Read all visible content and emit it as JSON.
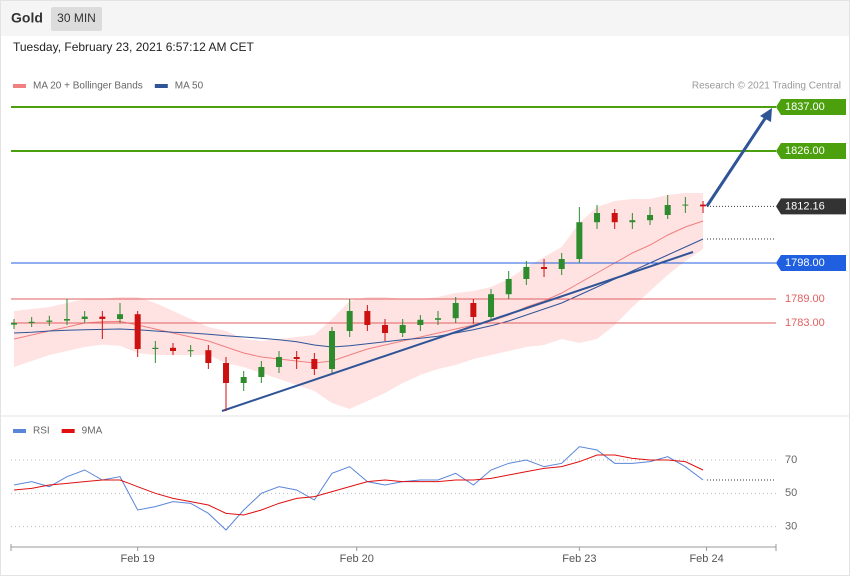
{
  "header": {
    "title": "Gold",
    "interval": "30 MIN",
    "timestamp": "Tuesday, February 23, 2021 6:57:12 AM CET"
  },
  "chart_data": [
    {
      "type": "candlestick",
      "credit": "Research © 2021 Trading Central",
      "xlim": [
        -0.17,
        43.13
      ],
      "ylim": [
        1760,
        1840
      ],
      "up_color": "#2e8b2e",
      "down_color": "#cc1111",
      "open": [
        1782.6,
        1783,
        1783.3,
        1783.6,
        1784,
        1784.6,
        1784,
        1785.2,
        1776.5,
        1776.8,
        1776,
        1776.2,
        1773,
        1768,
        1769.5,
        1772,
        1774.5,
        1774,
        1771.5,
        1781,
        1786,
        1782.5,
        1780.5,
        1782.5,
        1783.8,
        1784.2,
        1788,
        1784.5,
        1790.2,
        1794,
        1797,
        1796.5,
        1799,
        1808.2,
        1810.5,
        1808.2,
        1808.7,
        1810,
        1812.5,
        1812.6
      ],
      "high": [
        1784,
        1784.5,
        1784.8,
        1789,
        1786,
        1786,
        1788,
        1786,
        1778.5,
        1778,
        1777.5,
        1777.5,
        1774.5,
        1771,
        1773.5,
        1776,
        1776,
        1775.5,
        1782,
        1789,
        1787.5,
        1784,
        1784,
        1785,
        1786,
        1789.5,
        1789,
        1791.5,
        1796,
        1798.5,
        1799,
        1800.5,
        1812,
        1812.5,
        1811.5,
        1810.5,
        1812,
        1815,
        1814.5,
        1813.5
      ],
      "low": [
        1781.5,
        1782,
        1782.3,
        1782.5,
        1783,
        1779,
        1783,
        1774.5,
        1773,
        1775,
        1774.5,
        1771.5,
        1761,
        1766,
        1768,
        1770.5,
        1771.5,
        1770,
        1770.5,
        1779.5,
        1781,
        1778.5,
        1779.5,
        1781,
        1782.5,
        1783,
        1782.8,
        1783.5,
        1789,
        1792.5,
        1794.5,
        1795,
        1798,
        1806.5,
        1806.5,
        1806.5,
        1807.5,
        1809,
        1810.5,
        1810.5
      ],
      "close": [
        1783,
        1783.3,
        1783.6,
        1784,
        1784.6,
        1784,
        1785.2,
        1776.5,
        1776.8,
        1776,
        1776.2,
        1773,
        1768,
        1769.5,
        1772,
        1774.5,
        1774,
        1771.5,
        1781,
        1786,
        1782.5,
        1780.5,
        1782.5,
        1783.8,
        1784.2,
        1788,
        1784.5,
        1790.2,
        1794,
        1797,
        1796.5,
        1799,
        1808.2,
        1810.5,
        1808.2,
        1808.7,
        1810,
        1812.5,
        1812.6,
        1812.16
      ],
      "series": [
        {
          "name": "MA 20 + Bollinger Bands",
          "color": "#f08080",
          "band_color": "#ffd6d6",
          "values": [
            1779,
            1780,
            1781,
            1782,
            1783,
            1783.3,
            1783.4,
            1782.5,
            1781.5,
            1780.5,
            1779.5,
            1778.5,
            1777,
            1775.5,
            1774.5,
            1774,
            1773.5,
            1773,
            1773.5,
            1775,
            1776.5,
            1777.5,
            1778.5,
            1779.5,
            1780.5,
            1781.5,
            1782.5,
            1783.5,
            1785,
            1787,
            1788.5,
            1790.5,
            1793,
            1795.5,
            1798,
            1800.5,
            1802.5,
            1805,
            1807,
            1808.5
          ],
          "upper": [
            1786,
            1786.5,
            1787,
            1788,
            1789,
            1789,
            1789.5,
            1789.5,
            1788,
            1786,
            1784,
            1782,
            1781,
            1779,
            1778.5,
            1779,
            1779.5,
            1780,
            1784,
            1788.5,
            1789.5,
            1789.5,
            1789,
            1789,
            1789.5,
            1790.5,
            1791,
            1792,
            1794,
            1797,
            1799.5,
            1802,
            1808,
            1812,
            1813.5,
            1814,
            1814,
            1815,
            1815.5,
            1815.5
          ],
          "lower": [
            1772,
            1773.5,
            1775,
            1776,
            1777,
            1777.6,
            1777.3,
            1775.5,
            1775,
            1775,
            1775,
            1775,
            1773,
            1772,
            1770.5,
            1769,
            1767.5,
            1766,
            1763,
            1761.5,
            1763.5,
            1765.5,
            1768,
            1770,
            1771.5,
            1772.5,
            1774,
            1775,
            1776,
            1777,
            1777.5,
            1779,
            1778,
            1779,
            1782.5,
            1787,
            1791,
            1795,
            1798.5,
            1801.5
          ]
        },
        {
          "name": "MA 50",
          "color": "#2f5597",
          "values": [
            1780.5,
            1780.7,
            1781,
            1781.2,
            1781.3,
            1781.4,
            1781.5,
            1781.3,
            1781,
            1780.7,
            1780.5,
            1780.2,
            1779.8,
            1779.5,
            1779.2,
            1778.8,
            1778.3,
            1777.5,
            1777,
            1777.3,
            1777.8,
            1778.3,
            1778.8,
            1779.2,
            1779.7,
            1780.5,
            1781.3,
            1782.3,
            1783.5,
            1785,
            1786.5,
            1788,
            1790,
            1792,
            1794,
            1796,
            1798,
            1800,
            1802,
            1804
          ]
        }
      ],
      "levels": [
        {
          "value": 1837,
          "label": "1837.00",
          "color": "#4ca00e",
          "boxed": true
        },
        {
          "value": 1826,
          "label": "1826.00",
          "color": "#4ca00e",
          "boxed": true
        },
        {
          "value": 1798,
          "label": "1798.00",
          "color": "#1f5fe0",
          "boxed": true
        },
        {
          "value": 1789,
          "label": "1789.00",
          "color": "#e06060",
          "boxed": false
        },
        {
          "value": 1783,
          "label": "1783.00",
          "color": "#e06060",
          "boxed": false
        }
      ],
      "last_price": 1812.16,
      "last_price_color": "#333333"
    },
    {
      "type": "line",
      "xlim": [
        -0.17,
        43.13
      ],
      "ylim": [
        19,
        88
      ],
      "yticks": [
        30,
        50,
        70
      ],
      "grid": true,
      "xticks": [
        {
          "value": 7,
          "label": "Feb 19"
        },
        {
          "value": 19.4,
          "label": "Feb 20"
        },
        {
          "value": 32,
          "label": "Feb 23"
        },
        {
          "value": 39.2,
          "label": "Feb 24"
        }
      ],
      "series": [
        {
          "name": "RSI",
          "color": "#5b85d9",
          "values": [
            55,
            57,
            54,
            60,
            64,
            58,
            60,
            40,
            42,
            45,
            44,
            38,
            28,
            40,
            50,
            54,
            52,
            46,
            62,
            66,
            57,
            55,
            57,
            58,
            58,
            62,
            55,
            64,
            68,
            70,
            66,
            68,
            78,
            76,
            68,
            68,
            69,
            72,
            66,
            58
          ]
        },
        {
          "name": "9MA",
          "color": "#e01010",
          "values": [
            52,
            53,
            55,
            56,
            57,
            58,
            58,
            54,
            50,
            47,
            45,
            43,
            38,
            37,
            40,
            44,
            47,
            48,
            51,
            54,
            57,
            58,
            57,
            57,
            57,
            58,
            58,
            59,
            61,
            63,
            65,
            66,
            69,
            73,
            73,
            71,
            70,
            70,
            69,
            64
          ]
        }
      ]
    }
  ]
}
